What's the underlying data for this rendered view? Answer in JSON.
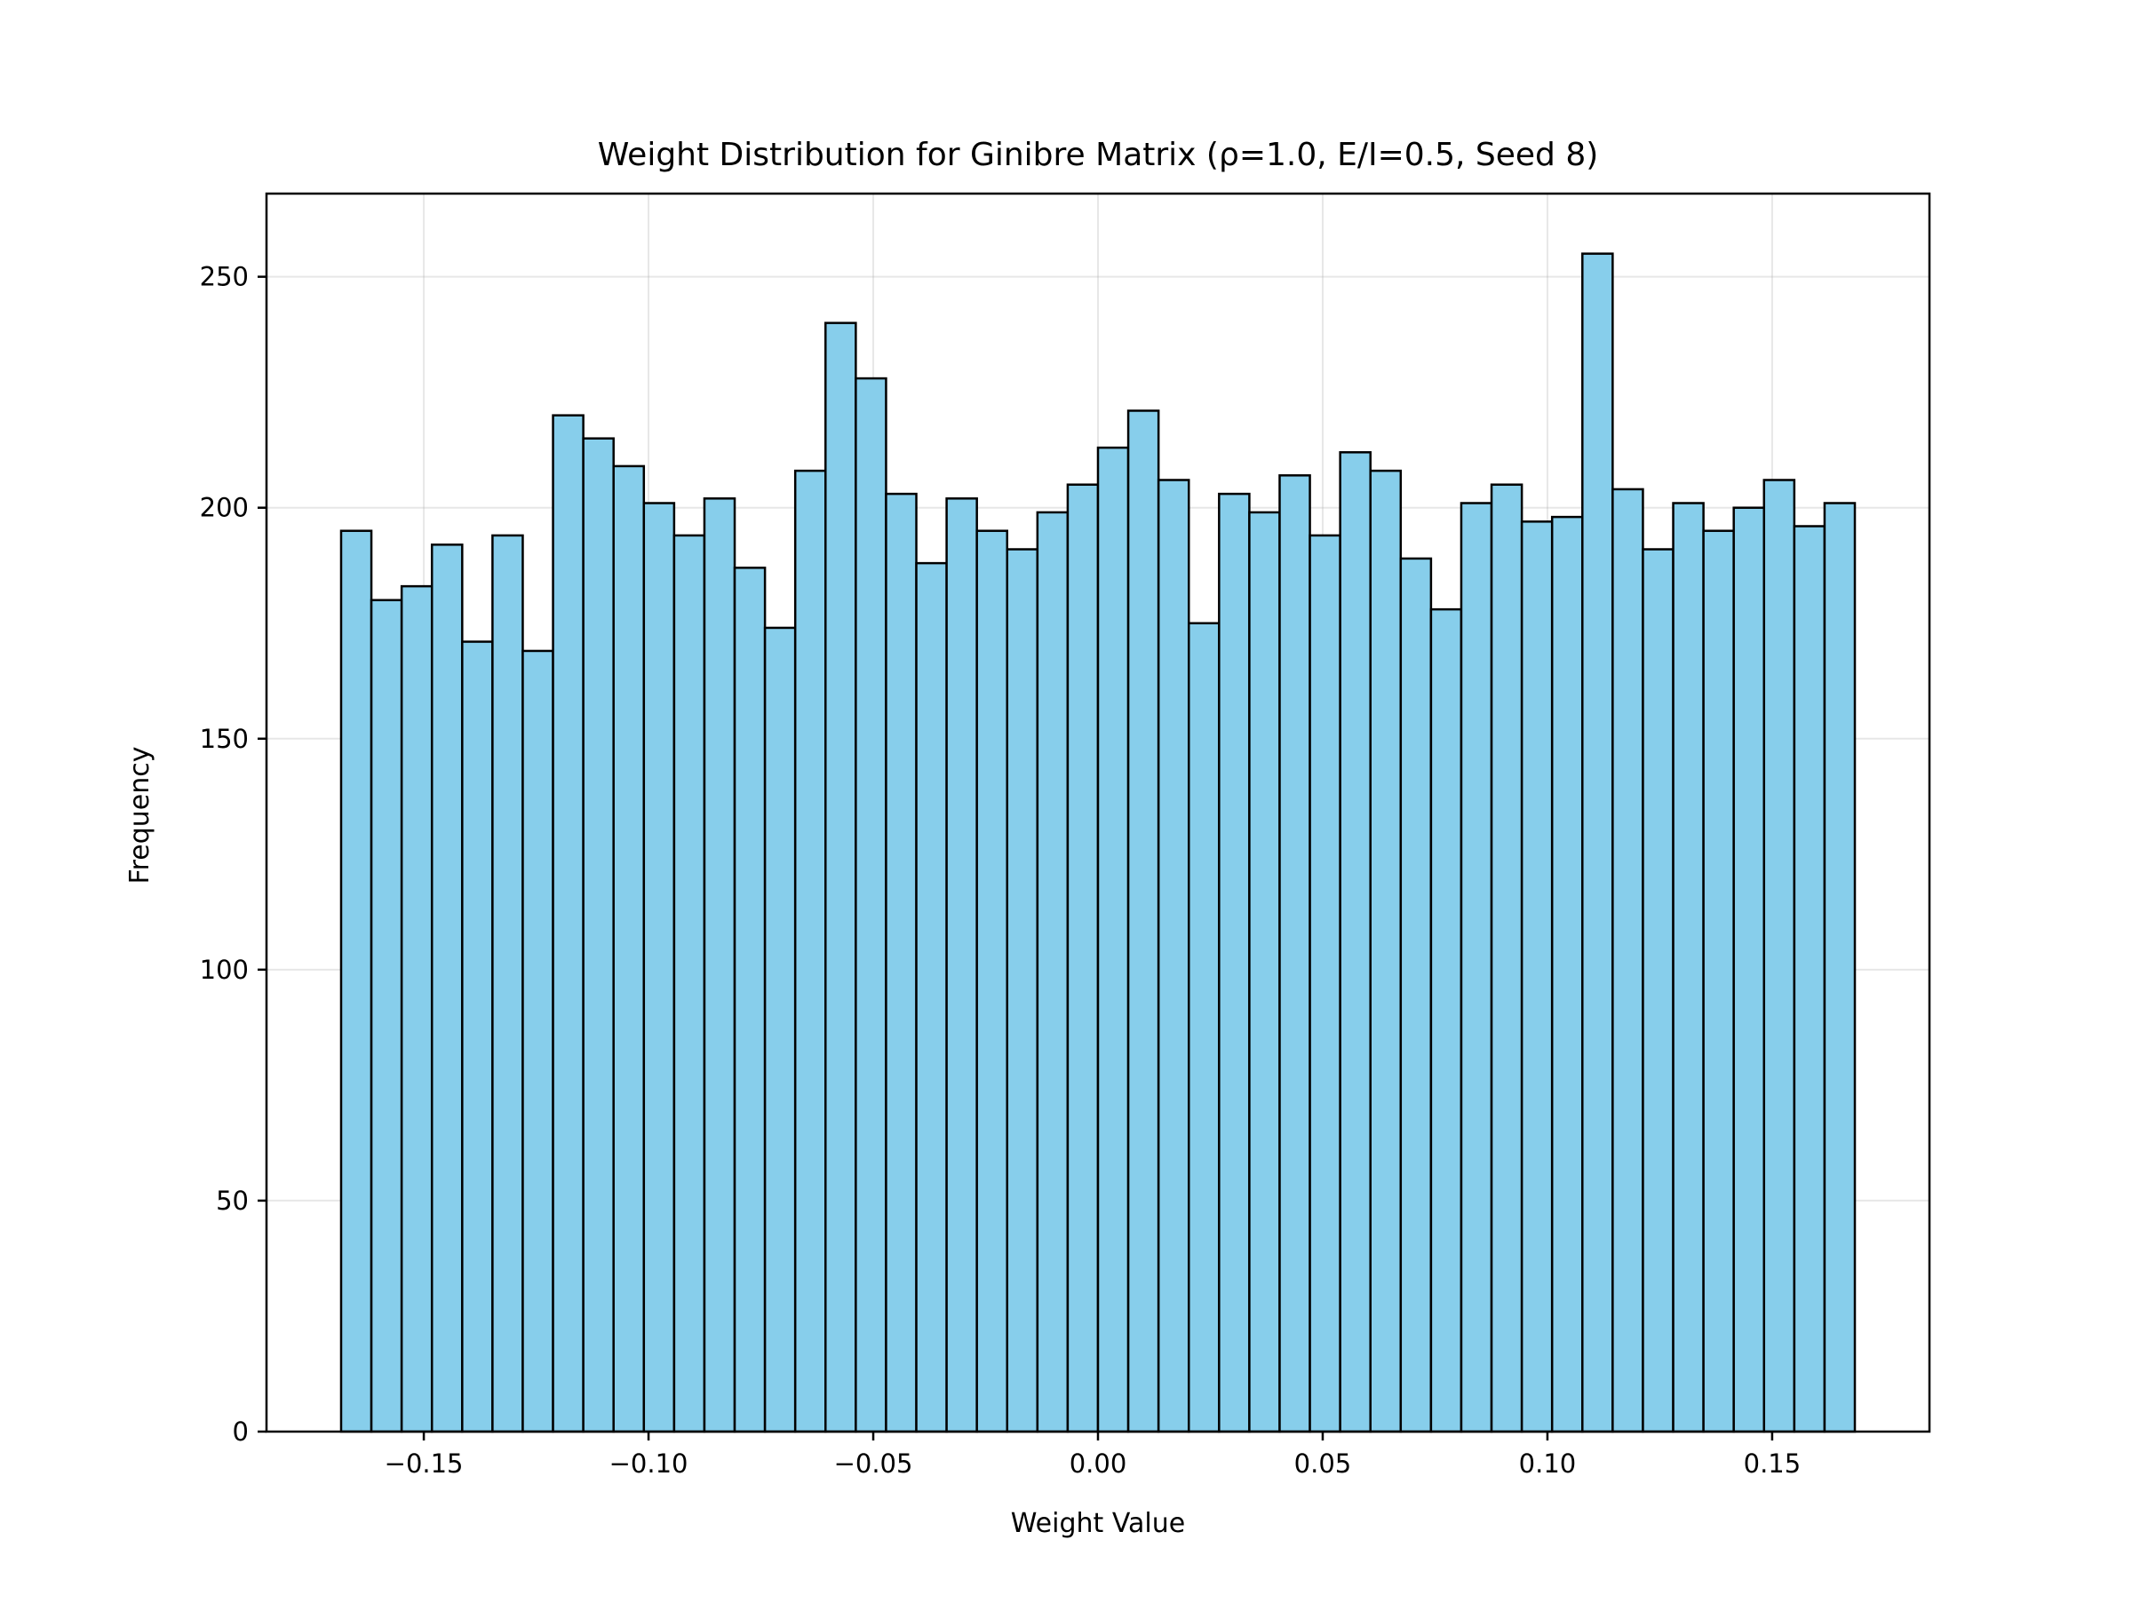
{
  "chart_data": {
    "type": "bar",
    "title": "Weight Distribution for Ginibre Matrix (ρ=1.0, E/I=0.5, Seed 8)",
    "xlabel": "Weight Value",
    "ylabel": "Frequency",
    "xlim": [
      -0.185,
      0.185
    ],
    "ylim": [
      0,
      268
    ],
    "xticks": [
      -0.15,
      -0.1,
      -0.05,
      0.0,
      0.05,
      0.1,
      0.15
    ],
    "xtick_labels": [
      "−0.15",
      "−0.10",
      "−0.05",
      "0.00",
      "0.05",
      "0.10",
      "0.15"
    ],
    "yticks": [
      0,
      50,
      100,
      150,
      200,
      250
    ],
    "ytick_labels": [
      "0",
      "50",
      "100",
      "150",
      "200",
      "250"
    ],
    "bin_start": -0.1684,
    "bin_end": 0.1684,
    "values": [
      195,
      180,
      183,
      192,
      171,
      194,
      169,
      220,
      215,
      209,
      201,
      194,
      202,
      187,
      174,
      208,
      240,
      228,
      203,
      188,
      202,
      195,
      191,
      199,
      205,
      213,
      221,
      206,
      175,
      203,
      199,
      207,
      194,
      212,
      208,
      189,
      178,
      201,
      205,
      197,
      198,
      255,
      204,
      191,
      201,
      195,
      200,
      206,
      196,
      201
    ],
    "bar_color": "#87ceeb",
    "edge_color": "#000000",
    "grid": true,
    "legend": "none"
  }
}
